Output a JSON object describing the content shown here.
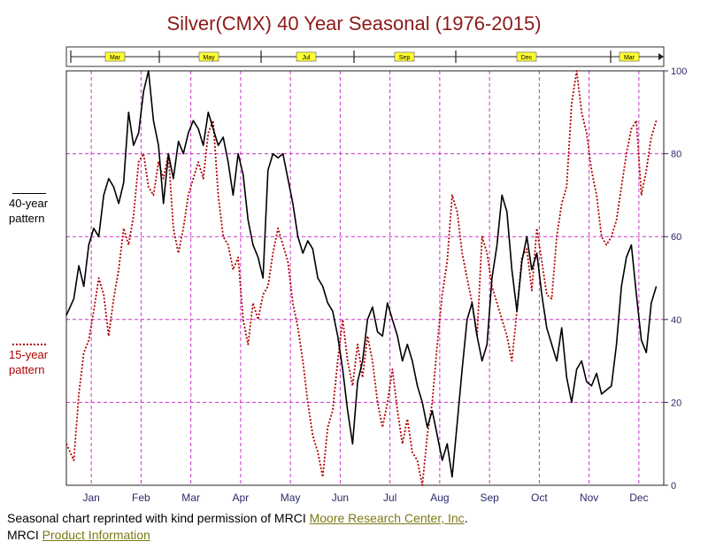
{
  "title": "Silver(CMX) 40 Year Seasonal (1976-2015)",
  "legend": {
    "black": "40-year pattern",
    "red": "15-year pattern"
  },
  "contract_bar": [
    "Mar",
    "May",
    "Jul",
    "Sep",
    "Dec",
    "Mar"
  ],
  "footer": {
    "line1_text": "Seasonal chart reprinted with kind permission of MRCI ",
    "line1_link": "Moore Research Center, Inc",
    "line1_end": ".",
    "line2_text": "MRCI ",
    "line2_link": "Product Information"
  },
  "colors": {
    "title": "#8b1a1a",
    "grid": "#cc33cc",
    "series_40": "#000000",
    "series_15": "#b00000",
    "contract_box": "#ffff33",
    "axis": "#2a2a6a",
    "link": "#7a7a18"
  },
  "chart_data": {
    "type": "line",
    "title": "Silver(CMX) 40 Year Seasonal (1976-2015)",
    "x_labels": [
      "Jan",
      "Feb",
      "Mar",
      "Apr",
      "May",
      "Jun",
      "Jul",
      "Aug",
      "Sep",
      "Oct",
      "Nov",
      "Dec"
    ],
    "x_range": [
      0,
      12
    ],
    "ylim": [
      0,
      100
    ],
    "y_ticks": [
      0,
      20,
      40,
      60,
      80,
      100
    ],
    "y_axis_side": "right",
    "grid": true,
    "series": [
      {
        "name": "40-year pattern",
        "style": "solid",
        "x": [
          0,
          0.15,
          0.25,
          0.35,
          0.45,
          0.55,
          0.65,
          0.75,
          0.85,
          0.95,
          1.05,
          1.15,
          1.25,
          1.35,
          1.45,
          1.55,
          1.65,
          1.75,
          1.85,
          1.95,
          2.05,
          2.15,
          2.25,
          2.35,
          2.45,
          2.55,
          2.65,
          2.75,
          2.85,
          2.95,
          3.05,
          3.15,
          3.25,
          3.35,
          3.45,
          3.55,
          3.65,
          3.75,
          3.85,
          3.95,
          4.05,
          4.15,
          4.25,
          4.35,
          4.45,
          4.55,
          4.65,
          4.75,
          4.85,
          4.95,
          5.05,
          5.15,
          5.25,
          5.35,
          5.45,
          5.55,
          5.65,
          5.75,
          5.85,
          5.95,
          6.05,
          6.15,
          6.25,
          6.35,
          6.45,
          6.55,
          6.65,
          6.75,
          6.85,
          6.95,
          7.05,
          7.15,
          7.25,
          7.35,
          7.45,
          7.55,
          7.65,
          7.75,
          7.85,
          7.95,
          8.05,
          8.15,
          8.25,
          8.35,
          8.45,
          8.55,
          8.65,
          8.75,
          8.85,
          8.95,
          9.05,
          9.15,
          9.25,
          9.35,
          9.45,
          9.55,
          9.65,
          9.75,
          9.85,
          9.95,
          10.05,
          10.15,
          10.25,
          10.35,
          10.45,
          10.55,
          10.65,
          10.75,
          10.85,
          10.95,
          11.05,
          11.15,
          11.25,
          11.35,
          11.45,
          11.55,
          11.65,
          11.75,
          11.85
        ],
        "values": [
          41,
          45,
          53,
          48,
          58,
          62,
          60,
          70,
          74,
          72,
          68,
          73,
          90,
          82,
          85,
          95,
          100,
          88,
          82,
          68,
          80,
          74,
          83,
          80,
          85,
          88,
          86,
          82,
          90,
          86,
          82,
          84,
          78,
          70,
          80,
          75,
          64,
          58,
          55,
          50,
          76,
          80,
          79,
          80,
          74,
          68,
          60,
          56,
          59,
          57,
          50,
          48,
          44,
          42,
          36,
          28,
          18,
          10,
          25,
          30,
          40,
          43,
          37,
          36,
          44,
          40,
          36,
          30,
          34,
          30,
          24,
          20,
          14,
          18,
          12,
          6,
          10,
          2,
          15,
          28,
          40,
          44,
          36,
          30,
          34,
          50,
          58,
          70,
          66,
          52,
          42,
          54,
          60,
          52,
          56,
          46,
          38,
          34,
          30,
          38,
          26,
          20,
          28,
          30,
          25,
          24,
          27,
          22,
          23,
          24,
          34,
          48,
          55,
          58,
          46,
          35,
          32,
          44,
          48
        ]
      },
      {
        "name": "15-year pattern",
        "style": "dotted",
        "x": [
          0,
          0.15,
          0.25,
          0.35,
          0.45,
          0.55,
          0.65,
          0.75,
          0.85,
          0.95,
          1.05,
          1.15,
          1.25,
          1.35,
          1.45,
          1.55,
          1.65,
          1.75,
          1.85,
          1.95,
          2.05,
          2.15,
          2.25,
          2.35,
          2.45,
          2.55,
          2.65,
          2.75,
          2.85,
          2.95,
          3.05,
          3.15,
          3.25,
          3.35,
          3.45,
          3.55,
          3.65,
          3.75,
          3.85,
          3.95,
          4.05,
          4.15,
          4.25,
          4.35,
          4.45,
          4.55,
          4.65,
          4.75,
          4.85,
          4.95,
          5.05,
          5.15,
          5.25,
          5.35,
          5.45,
          5.55,
          5.65,
          5.75,
          5.85,
          5.95,
          6.05,
          6.15,
          6.25,
          6.35,
          6.45,
          6.55,
          6.65,
          6.75,
          6.85,
          6.95,
          7.05,
          7.15,
          7.25,
          7.35,
          7.45,
          7.55,
          7.65,
          7.75,
          7.85,
          7.95,
          8.05,
          8.15,
          8.25,
          8.35,
          8.45,
          8.55,
          8.65,
          8.75,
          8.85,
          8.95,
          9.05,
          9.15,
          9.25,
          9.35,
          9.45,
          9.55,
          9.65,
          9.75,
          9.85,
          9.95,
          10.05,
          10.15,
          10.25,
          10.35,
          10.45,
          10.55,
          10.65,
          10.75,
          10.85,
          10.95,
          11.05,
          11.15,
          11.25,
          11.35,
          11.45,
          11.55,
          11.65,
          11.75,
          11.85
        ],
        "values": [
          10,
          6,
          22,
          32,
          35,
          42,
          50,
          46,
          36,
          45,
          52,
          62,
          58,
          65,
          78,
          80,
          72,
          70,
          78,
          74,
          80,
          62,
          56,
          62,
          70,
          74,
          78,
          74,
          85,
          88,
          70,
          60,
          58,
          52,
          55,
          40,
          34,
          44,
          40,
          46,
          48,
          56,
          62,
          58,
          54,
          44,
          38,
          30,
          20,
          12,
          8,
          2,
          14,
          18,
          30,
          40,
          30,
          24,
          34,
          26,
          36,
          30,
          20,
          14,
          20,
          28,
          18,
          10,
          16,
          8,
          6,
          0,
          12,
          20,
          34,
          46,
          54,
          70,
          66,
          56,
          50,
          44,
          36,
          60,
          56,
          48,
          44,
          40,
          36,
          30,
          42,
          55,
          57,
          47,
          62,
          54,
          46,
          45,
          60,
          68,
          72,
          92,
          100,
          90,
          85,
          76,
          70,
          60,
          58,
          60,
          64,
          72,
          80,
          86,
          88,
          70,
          76,
          84,
          88
        ]
      }
    ]
  }
}
